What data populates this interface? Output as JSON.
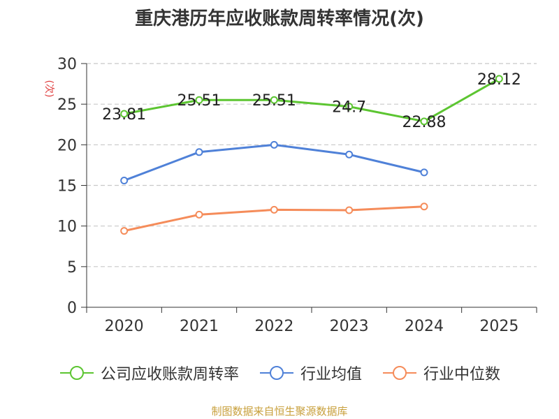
{
  "title": "重庆港历年应收账款周转率情况(次)",
  "source": "制图数据来自恒生聚源数据库",
  "chart_data": {
    "type": "line",
    "title": "重庆港历年应收账款周转率情况(次)",
    "ylabel": "(次)",
    "xlabel": "",
    "categories": [
      "2020",
      "2021",
      "2022",
      "2023",
      "2024",
      "2025"
    ],
    "ylim": [
      0,
      30
    ],
    "yticks": [
      0,
      5,
      10,
      15,
      20,
      25,
      30
    ],
    "grid": true,
    "legend_position": "bottom",
    "series": [
      {
        "name": "公司应收账款周转率",
        "color": "#5cc531",
        "values": [
          23.81,
          25.51,
          25.51,
          24.7,
          22.88,
          28.12
        ],
        "labels": [
          "23.81",
          "25.51",
          "25.51",
          "24.7",
          "22.88",
          "28.12"
        ]
      },
      {
        "name": "行业均值",
        "color": "#4f81d8",
        "values": [
          15.6,
          19.1,
          20.0,
          18.8,
          16.6,
          null
        ]
      },
      {
        "name": "行业中位数",
        "color": "#f58c5a",
        "values": [
          9.4,
          11.4,
          12.0,
          11.95,
          12.4,
          null
        ]
      }
    ]
  }
}
